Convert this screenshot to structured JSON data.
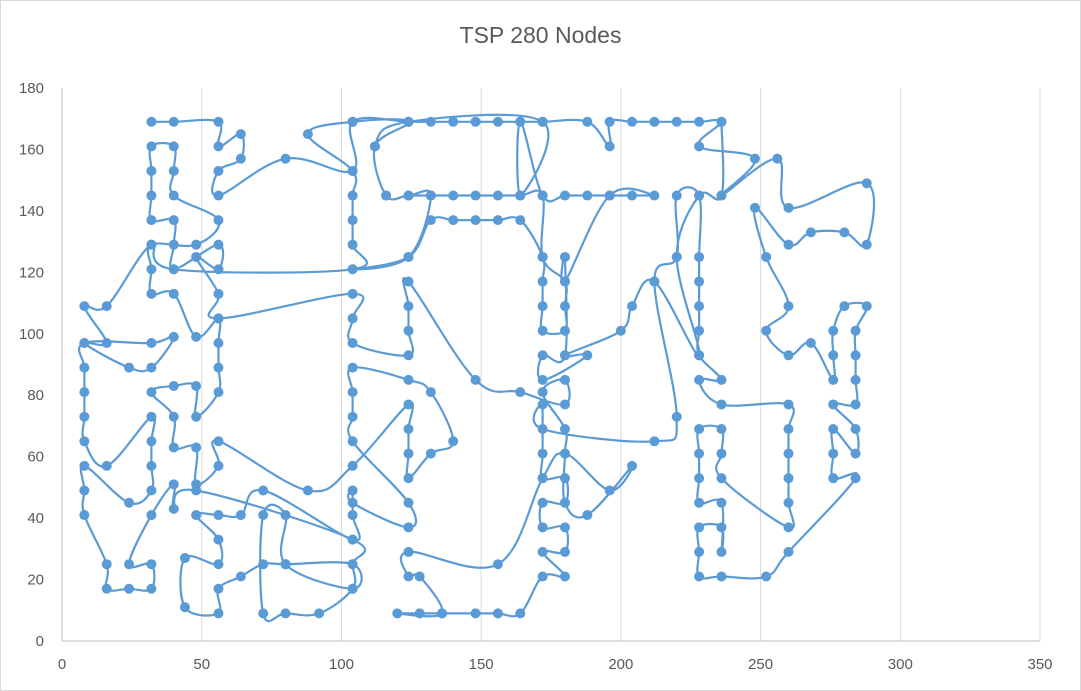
{
  "chart_data": {
    "type": "line",
    "title": "TSP 280 Nodes",
    "xlabel": "",
    "ylabel": "",
    "xlim": [
      0,
      350
    ],
    "ylim": [
      0,
      180
    ],
    "xticks": [
      0,
      50,
      100,
      150,
      200,
      250,
      300,
      350
    ],
    "yticks": [
      0,
      20,
      40,
      60,
      80,
      100,
      120,
      140,
      160,
      180
    ],
    "grid": "vertical gridlines",
    "legend": "none",
    "colors": {
      "line": "#5b9bd5",
      "marker": "#5b9bd5",
      "grid": "#d9d9d9",
      "axis": "#bfbfbf",
      "text": "#595959"
    },
    "tour": [
      [
        32,
        169
      ],
      [
        40,
        169
      ],
      [
        56,
        169
      ],
      [
        56,
        161
      ],
      [
        64,
        165
      ],
      [
        64,
        157
      ],
      [
        56,
        153
      ],
      [
        56,
        145
      ],
      [
        80,
        157
      ],
      [
        104,
        153
      ],
      [
        104,
        169
      ],
      [
        124,
        169
      ],
      [
        132,
        169
      ],
      [
        140,
        169
      ],
      [
        148,
        169
      ],
      [
        156,
        169
      ],
      [
        164,
        169
      ],
      [
        172,
        169
      ],
      [
        188,
        169
      ],
      [
        196,
        161
      ],
      [
        196,
        169
      ],
      [
        204,
        169
      ],
      [
        212,
        169
      ],
      [
        220,
        169
      ],
      [
        228,
        169
      ],
      [
        236,
        169
      ],
      [
        228,
        161
      ],
      [
        248,
        157
      ],
      [
        236,
        145
      ],
      [
        256,
        157
      ],
      [
        260,
        141
      ],
      [
        288,
        149
      ],
      [
        288,
        129
      ],
      [
        280,
        133
      ],
      [
        268,
        133
      ],
      [
        260,
        129
      ],
      [
        248,
        141
      ],
      [
        252,
        125
      ],
      [
        260,
        109
      ],
      [
        252,
        101
      ],
      [
        260,
        93
      ],
      [
        268,
        97
      ],
      [
        276,
        85
      ],
      [
        276,
        93
      ],
      [
        276,
        101
      ],
      [
        280,
        109
      ],
      [
        288,
        109
      ],
      [
        284,
        101
      ],
      [
        284,
        93
      ],
      [
        284,
        85
      ],
      [
        284,
        77
      ],
      [
        276,
        77
      ],
      [
        284,
        69
      ],
      [
        284,
        61
      ],
      [
        276,
        69
      ],
      [
        276,
        61
      ],
      [
        276,
        53
      ],
      [
        284,
        53
      ],
      [
        260,
        29
      ],
      [
        252,
        21
      ],
      [
        236,
        21
      ],
      [
        228,
        21
      ],
      [
        228,
        29
      ],
      [
        228,
        37
      ],
      [
        236,
        37
      ],
      [
        236,
        29
      ],
      [
        236,
        45
      ],
      [
        228,
        45
      ],
      [
        228,
        53
      ],
      [
        228,
        61
      ],
      [
        228,
        69
      ],
      [
        236,
        69
      ],
      [
        236,
        61
      ],
      [
        236,
        53
      ],
      [
        260,
        37
      ],
      [
        260,
        45
      ],
      [
        260,
        53
      ],
      [
        260,
        61
      ],
      [
        260,
        69
      ],
      [
        260,
        77
      ],
      [
        236,
        77
      ],
      [
        228,
        85
      ],
      [
        236,
        85
      ],
      [
        228,
        93
      ],
      [
        228,
        101
      ],
      [
        228,
        109
      ],
      [
        228,
        117
      ],
      [
        228,
        125
      ],
      [
        228,
        145
      ],
      [
        220,
        145
      ],
      [
        220,
        125
      ],
      [
        212,
        117
      ],
      [
        220,
        73
      ],
      [
        212,
        65
      ],
      [
        172,
        69
      ],
      [
        172,
        77
      ],
      [
        172,
        61
      ],
      [
        172,
        53
      ],
      [
        180,
        53
      ],
      [
        180,
        45
      ],
      [
        172,
        45
      ],
      [
        172,
        37
      ],
      [
        180,
        37
      ],
      [
        180,
        29
      ],
      [
        172,
        29
      ],
      [
        180,
        21
      ],
      [
        172,
        21
      ],
      [
        164,
        9
      ],
      [
        156,
        9
      ],
      [
        148,
        9
      ],
      [
        136,
        9
      ],
      [
        128,
        9
      ],
      [
        120,
        9
      ],
      [
        136,
        9
      ],
      [
        128,
        21
      ],
      [
        124,
        21
      ],
      [
        124,
        29
      ],
      [
        156,
        25
      ],
      [
        172,
        53
      ],
      [
        180,
        61
      ],
      [
        196,
        49
      ],
      [
        204,
        57
      ],
      [
        188,
        41
      ],
      [
        180,
        45
      ],
      [
        180,
        61
      ],
      [
        180,
        69
      ],
      [
        172,
        81
      ],
      [
        180,
        85
      ],
      [
        180,
        77
      ],
      [
        164,
        81
      ],
      [
        148,
        85
      ],
      [
        124,
        117
      ],
      [
        124,
        109
      ],
      [
        124,
        101
      ],
      [
        124,
        93
      ],
      [
        104,
        97
      ],
      [
        104,
        105
      ],
      [
        104,
        113
      ],
      [
        56,
        105
      ],
      [
        56,
        113
      ],
      [
        48,
        125
      ],
      [
        56,
        121
      ],
      [
        56,
        129
      ],
      [
        40,
        121
      ],
      [
        40,
        129
      ],
      [
        40,
        137
      ],
      [
        32,
        137
      ],
      [
        32,
        145
      ],
      [
        32,
        153
      ],
      [
        32,
        161
      ],
      [
        40,
        161
      ],
      [
        40,
        153
      ],
      [
        40,
        145
      ],
      [
        56,
        137
      ],
      [
        48,
        129
      ],
      [
        32,
        129
      ],
      [
        32,
        121
      ],
      [
        32,
        113
      ],
      [
        40,
        113
      ],
      [
        48,
        99
      ],
      [
        56,
        105
      ],
      [
        56,
        97
      ],
      [
        56,
        89
      ],
      [
        56,
        81
      ],
      [
        48,
        73
      ],
      [
        48,
        83
      ],
      [
        40,
        83
      ],
      [
        32,
        81
      ],
      [
        40,
        73
      ],
      [
        40,
        63
      ],
      [
        48,
        63
      ],
      [
        48,
        51
      ],
      [
        56,
        57
      ],
      [
        56,
        65
      ],
      [
        88,
        49
      ],
      [
        104,
        57
      ],
      [
        124,
        77
      ],
      [
        124,
        69
      ],
      [
        124,
        61
      ],
      [
        124,
        53
      ],
      [
        132,
        61
      ],
      [
        140,
        65
      ],
      [
        132,
        81
      ],
      [
        124,
        85
      ],
      [
        104,
        89
      ],
      [
        104,
        81
      ],
      [
        104,
        73
      ],
      [
        104,
        65
      ],
      [
        124,
        45
      ],
      [
        124,
        37
      ],
      [
        104,
        45
      ],
      [
        104,
        49
      ],
      [
        104,
        41
      ],
      [
        104,
        33
      ],
      [
        72,
        49
      ],
      [
        64,
        41
      ],
      [
        56,
        41
      ],
      [
        48,
        41
      ],
      [
        56,
        33
      ],
      [
        56,
        25
      ],
      [
        44,
        27
      ],
      [
        44,
        11
      ],
      [
        56,
        9
      ],
      [
        56,
        17
      ],
      [
        64,
        21
      ],
      [
        72,
        25
      ],
      [
        80,
        25
      ],
      [
        104,
        25
      ],
      [
        104,
        17
      ],
      [
        80,
        25
      ],
      [
        80,
        41
      ],
      [
        72,
        41
      ],
      [
        72,
        9
      ],
      [
        80,
        9
      ],
      [
        92,
        9
      ],
      [
        104,
        17
      ],
      [
        104,
        25
      ],
      [
        104,
        33
      ],
      [
        48,
        49
      ],
      [
        40,
        43
      ],
      [
        40,
        51
      ],
      [
        32,
        41
      ],
      [
        24,
        25
      ],
      [
        32,
        25
      ],
      [
        32,
        17
      ],
      [
        24,
        17
      ],
      [
        16,
        17
      ],
      [
        16,
        25
      ],
      [
        8,
        41
      ],
      [
        8,
        49
      ],
      [
        8,
        57
      ],
      [
        24,
        45
      ],
      [
        32,
        49
      ],
      [
        32,
        57
      ],
      [
        32,
        65
      ],
      [
        32,
        73
      ],
      [
        16,
        57
      ],
      [
        8,
        65
      ],
      [
        8,
        73
      ],
      [
        8,
        81
      ],
      [
        8,
        89
      ],
      [
        8,
        97
      ],
      [
        32,
        97
      ],
      [
        40,
        99
      ],
      [
        32,
        89
      ],
      [
        24,
        89
      ],
      [
        8,
        97
      ],
      [
        16,
        97
      ],
      [
        8,
        109
      ],
      [
        16,
        109
      ],
      [
        32,
        129
      ],
      [
        40,
        121
      ],
      [
        104,
        121
      ],
      [
        104,
        129
      ],
      [
        104,
        137
      ],
      [
        104,
        145
      ],
      [
        104,
        153
      ],
      [
        88,
        165
      ],
      [
        104,
        169
      ],
      [
        124,
        169
      ],
      [
        112,
        161
      ],
      [
        116,
        145
      ],
      [
        124,
        145
      ],
      [
        132,
        145
      ],
      [
        124,
        125
      ],
      [
        104,
        121
      ],
      [
        124,
        125
      ],
      [
        132,
        137
      ],
      [
        140,
        137
      ],
      [
        148,
        137
      ],
      [
        156,
        137
      ],
      [
        164,
        137
      ],
      [
        172,
        125
      ],
      [
        172,
        117
      ],
      [
        172,
        109
      ],
      [
        172,
        101
      ],
      [
        180,
        101
      ],
      [
        180,
        109
      ],
      [
        180,
        117
      ],
      [
        172,
        125
      ],
      [
        172,
        145
      ],
      [
        164,
        145
      ],
      [
        156,
        145
      ],
      [
        148,
        145
      ],
      [
        140,
        145
      ],
      [
        132,
        145
      ],
      [
        124,
        145
      ],
      [
        116,
        145
      ],
      [
        112,
        161
      ],
      [
        124,
        169
      ],
      [
        172,
        169
      ],
      [
        164,
        145
      ],
      [
        164,
        169
      ],
      [
        172,
        145
      ],
      [
        180,
        145
      ],
      [
        188,
        145
      ],
      [
        196,
        145
      ],
      [
        204,
        145
      ],
      [
        212,
        145
      ],
      [
        196,
        145
      ],
      [
        180,
        117
      ],
      [
        180,
        125
      ],
      [
        180,
        93
      ],
      [
        172,
        93
      ],
      [
        172,
        85
      ],
      [
        188,
        93
      ],
      [
        180,
        93
      ],
      [
        200,
        101
      ],
      [
        204,
        109
      ],
      [
        212,
        117
      ],
      [
        228,
        93
      ],
      [
        220,
        125
      ],
      [
        228,
        145
      ],
      [
        236,
        145
      ],
      [
        236,
        169
      ]
    ]
  }
}
